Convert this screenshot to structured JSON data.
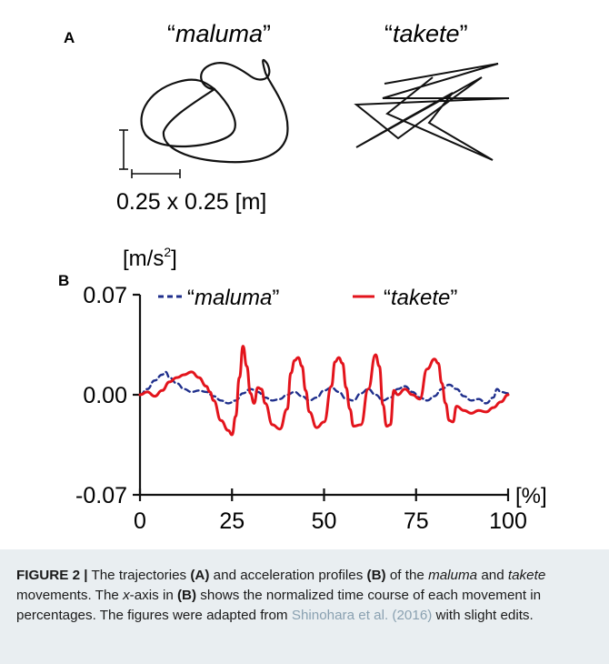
{
  "panel_a": {
    "label": "A",
    "maluma_label": "maluma",
    "takete_label": "takete",
    "scale_label": "0.25 x 0.25 [m]"
  },
  "panel_b": {
    "label": "B",
    "y_unit": "[m/s",
    "y_unit_sup": "2",
    "y_unit_close": "]",
    "x_unit": "[%]"
  },
  "chart_data": {
    "type": "line",
    "title": "",
    "xlabel": "[%]",
    "ylabel": "[m/s2]",
    "xlim": [
      0,
      100
    ],
    "ylim": [
      -0.07,
      0.07
    ],
    "xticks": [
      "0",
      "25",
      "50",
      "75",
      "100"
    ],
    "yticks": [
      "0.07",
      "0.00",
      "-0.07"
    ],
    "legend": "top",
    "series": [
      {
        "name": "maluma",
        "color": "#1f2f8c",
        "style": "dashed",
        "x": [
          0,
          2,
          4,
          6,
          7,
          8,
          10,
          12,
          14,
          16,
          18,
          20,
          22,
          24,
          26,
          28,
          30,
          32,
          34,
          36,
          38,
          40,
          42,
          44,
          46,
          48,
          50,
          52,
          54,
          56,
          58,
          60,
          62,
          64,
          66,
          68,
          70,
          72,
          74,
          76,
          78,
          80,
          82,
          84,
          86,
          88,
          90,
          92,
          94,
          96,
          97,
          98,
          100
        ],
        "y": [
          0.0,
          0.004,
          0.01,
          0.014,
          0.016,
          0.012,
          0.008,
          0.004,
          0.002,
          0.003,
          0.002,
          -0.001,
          -0.004,
          -0.006,
          -0.004,
          0.001,
          0.004,
          0.002,
          -0.002,
          -0.004,
          -0.003,
          0.0,
          0.002,
          -0.001,
          -0.004,
          -0.002,
          0.003,
          0.005,
          0.002,
          -0.003,
          -0.004,
          0.001,
          0.004,
          0.0,
          -0.004,
          -0.002,
          0.004,
          0.006,
          0.002,
          -0.002,
          -0.004,
          -0.001,
          0.004,
          0.007,
          0.004,
          -0.001,
          -0.004,
          -0.003,
          -0.006,
          -0.002,
          0.004,
          0.002,
          0.001
        ]
      },
      {
        "name": "takete",
        "color": "#e3141c",
        "style": "solid",
        "x": [
          0,
          2,
          4,
          6,
          8,
          10,
          12,
          14,
          16,
          18,
          19,
          20,
          22,
          24,
          25,
          26,
          27,
          28,
          29,
          30,
          31,
          32,
          33,
          34,
          36,
          38,
          40,
          41,
          42,
          43,
          44,
          45,
          46,
          48,
          50,
          52,
          53,
          54,
          55,
          56,
          57,
          58,
          60,
          62,
          64,
          65,
          66,
          67,
          68,
          69,
          70,
          72,
          74,
          76,
          78,
          80,
          81,
          82,
          83,
          84,
          85,
          86,
          88,
          90,
          92,
          94,
          96,
          98,
          100
        ],
        "y": [
          0.0,
          0.002,
          -0.001,
          0.003,
          0.009,
          0.012,
          0.014,
          0.016,
          0.012,
          0.006,
          0.002,
          -0.004,
          -0.018,
          -0.025,
          -0.028,
          -0.015,
          0.012,
          0.034,
          0.02,
          0.001,
          -0.006,
          0.005,
          0.004,
          -0.006,
          -0.021,
          -0.024,
          -0.01,
          0.015,
          0.024,
          0.026,
          0.02,
          0.003,
          -0.012,
          -0.023,
          -0.019,
          0.006,
          0.023,
          0.026,
          0.022,
          0.005,
          -0.01,
          -0.022,
          -0.021,
          0.004,
          0.028,
          0.02,
          -0.007,
          -0.022,
          -0.021,
          0.003,
          0.0,
          0.004,
          0.0,
          -0.003,
          0.018,
          0.025,
          0.022,
          0.008,
          -0.006,
          -0.018,
          -0.019,
          -0.008,
          -0.011,
          -0.013,
          -0.011,
          -0.012,
          -0.009,
          -0.005,
          0.0
        ]
      }
    ]
  },
  "caption": {
    "figure_label": "FIGURE 2 |",
    "t1": " The trajectories ",
    "b1": "(A)",
    "t2": " and acceleration profiles ",
    "b2": "(B)",
    "t3": " of the ",
    "i1": "maluma",
    "t4": " and ",
    "i2": "takete",
    "t5": " movements. The ",
    "i3": "x",
    "t6": "-axis in ",
    "b3": "(B)",
    "t7": " shows the normalized time course of each movement in percentages. The figures were adapted from ",
    "link": "Shinohara et al. (2016)",
    "t8": " with slight edits."
  },
  "colors": {
    "maluma_line": "#1f2f8c",
    "takete_line": "#e3141c",
    "caption_bg": "#e9eef1",
    "link": "#8aa1b1"
  }
}
